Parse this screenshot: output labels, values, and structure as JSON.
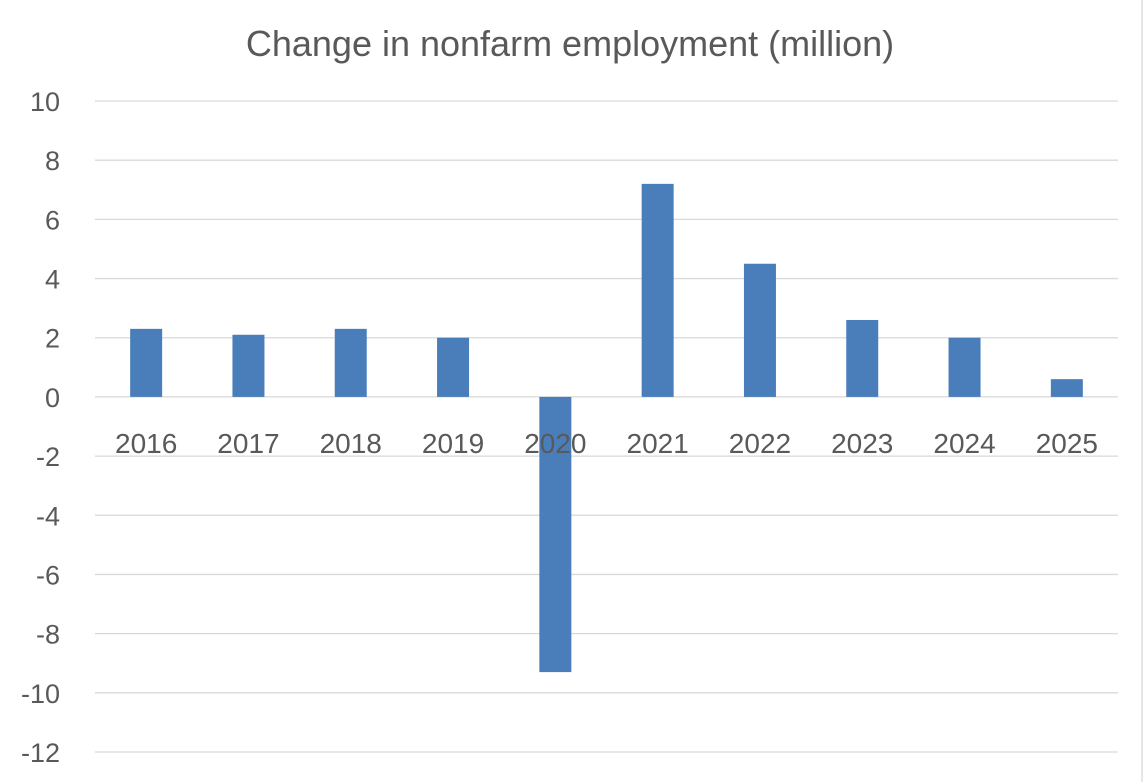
{
  "chart_data": {
    "type": "bar",
    "title": "Change in nonfarm employment (million)",
    "xlabel": "",
    "ylabel": "",
    "categories": [
      "2016",
      "2017",
      "2018",
      "2019",
      "2020",
      "2021",
      "2022",
      "2023",
      "2024",
      "2025"
    ],
    "values": [
      2.3,
      2.1,
      2.3,
      2.0,
      -9.3,
      7.2,
      4.5,
      2.6,
      2.0,
      0.6
    ],
    "ylim": [
      -12,
      10
    ],
    "yticks": [
      10,
      8,
      6,
      4,
      2,
      0,
      -2,
      -4,
      -6,
      -8,
      -10,
      -12
    ],
    "ytick_labels": [
      "10",
      "8",
      "6",
      "4",
      "2",
      "0",
      "-2",
      "-4",
      "-6",
      "-8",
      "-10",
      "-12"
    ],
    "grid": true,
    "legend": "none",
    "bar_color": "#4a7ebb",
    "grid_color": "#d9d9d9",
    "text_color": "#595959"
  }
}
